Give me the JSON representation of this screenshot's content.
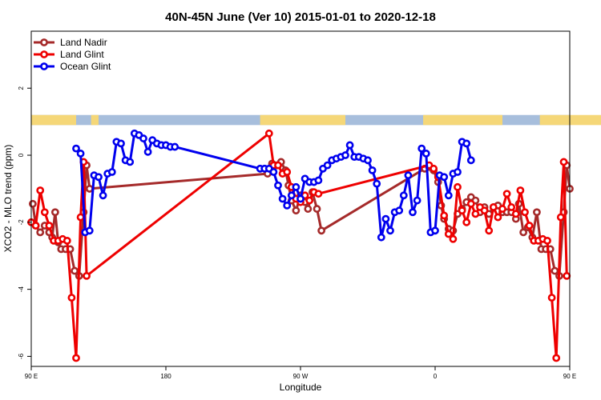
{
  "chart_data": {
    "type": "line",
    "title": "40N-45N June (Ver 10)   2015-01-01 to 2020-12-18",
    "xlabel": "Longitude",
    "ylabel": "XCO2 - MLO trend (ppm)",
    "xlim": [
      90,
      450
    ],
    "ylim": [
      -6.3,
      3.7
    ],
    "x_ticks": [
      {
        "value": 90,
        "label": "90 E"
      },
      {
        "value": 180,
        "label": "180"
      },
      {
        "value": 270,
        "label": "90 W"
      },
      {
        "value": 360,
        "label": "0"
      },
      {
        "value": 450,
        "label": "90 E"
      },
      {
        "value": 540,
        "label": "180"
      }
    ],
    "y_ticks": [
      {
        "value": -6,
        "label": "-6"
      },
      {
        "value": -4,
        "label": "-4"
      },
      {
        "value": -2,
        "label": "-2"
      },
      {
        "value": 0,
        "label": "0"
      },
      {
        "value": 2,
        "label": "2"
      }
    ],
    "legend_position": "top-left",
    "land_ocean_strip": {
      "y_range": [
        0.9,
        1.2
      ],
      "land_color": "#F5D778",
      "ocean_color": "#A7BEDC",
      "land_intervals": [
        [
          90,
          120
        ],
        [
          130,
          135
        ],
        [
          243,
          300
        ],
        [
          352,
          405
        ],
        [
          430,
          480
        ],
        [
          490,
          495
        ]
      ]
    },
    "series": [
      {
        "name": "Land Nadir",
        "color": "#A52A2A",
        "points": [
          [
            91,
            -1.45
          ],
          [
            93,
            -2.1
          ],
          [
            96,
            -2.3
          ],
          [
            99,
            -2.1
          ],
          [
            102,
            -2.3
          ],
          [
            104,
            -2.45
          ],
          [
            106,
            -1.7
          ],
          [
            108,
            -2.6
          ],
          [
            110,
            -2.8
          ],
          [
            113,
            -2.8
          ],
          [
            116,
            -2.8
          ],
          [
            119,
            -3.45
          ],
          [
            122,
            -3.6
          ],
          [
            125,
            -1.7
          ],
          [
            127,
            -0.3
          ],
          [
            129,
            -1.0
          ],
          [
            248,
            -0.55
          ],
          [
            251,
            -0.25
          ],
          [
            254,
            -0.3
          ],
          [
            257,
            -0.2
          ],
          [
            260,
            -0.45
          ],
          [
            262,
            -0.9
          ],
          [
            264,
            -1.35
          ],
          [
            267,
            -1.65
          ],
          [
            270,
            -1.2
          ],
          [
            273,
            -1.4
          ],
          [
            275,
            -1.6
          ],
          [
            278,
            -1.1
          ],
          [
            281,
            -1.6
          ],
          [
            284,
            -2.25
          ],
          [
            353,
            -0.4
          ],
          [
            356,
            -0.35
          ],
          [
            359,
            -0.45
          ],
          [
            362,
            -0.8
          ],
          [
            364,
            -1.5
          ],
          [
            366,
            -1.9
          ],
          [
            369,
            -2.2
          ],
          [
            372,
            -2.25
          ],
          [
            375,
            -1.75
          ],
          [
            378,
            -1.6
          ],
          [
            381,
            -1.4
          ],
          [
            384,
            -1.25
          ],
          [
            387,
            -1.35
          ],
          [
            390,
            -1.7
          ],
          [
            393,
            -1.55
          ],
          [
            396,
            -1.75
          ],
          [
            399,
            -1.55
          ],
          [
            402,
            -1.5
          ],
          [
            405,
            -1.7
          ],
          [
            408,
            -1.7
          ],
          [
            411,
            -1.7
          ],
          [
            414,
            -1.9
          ],
          [
            416,
            -1.45
          ],
          [
            419,
            -2.3
          ],
          [
            422,
            -2.15
          ],
          [
            425,
            -2.45
          ],
          [
            428,
            -1.7
          ],
          [
            431,
            -2.8
          ],
          [
            434,
            -2.8
          ],
          [
            437,
            -2.8
          ],
          [
            440,
            -3.45
          ],
          [
            443,
            -3.6
          ],
          [
            446,
            -1.7
          ],
          [
            448,
            -0.3
          ],
          [
            450,
            -1.0
          ]
        ]
      },
      {
        "name": "Land Glint",
        "color": "#EE0000",
        "points": [
          [
            90,
            -2.0
          ],
          [
            93,
            -2.1
          ],
          [
            96,
            -1.05
          ],
          [
            99,
            -1.7
          ],
          [
            102,
            -2.1
          ],
          [
            105,
            -2.55
          ],
          [
            108,
            -2.55
          ],
          [
            111,
            -2.5
          ],
          [
            114,
            -2.55
          ],
          [
            117,
            -4.25
          ],
          [
            120,
            -6.05
          ],
          [
            123,
            -1.85
          ],
          [
            125,
            -0.2
          ],
          [
            127,
            -3.6
          ],
          [
            249,
            0.65
          ],
          [
            252,
            -0.3
          ],
          [
            255,
            -0.3
          ],
          [
            258,
            -0.55
          ],
          [
            261,
            -0.5
          ],
          [
            264,
            -0.95
          ],
          [
            267,
            -1.3
          ],
          [
            270,
            -1.4
          ],
          [
            273,
            -1.2
          ],
          [
            276,
            -1.35
          ],
          [
            279,
            -1.1
          ],
          [
            282,
            -1.15
          ],
          [
            356,
            -0.3
          ],
          [
            359,
            -0.4
          ],
          [
            362,
            -0.65
          ],
          [
            366,
            -1.8
          ],
          [
            369,
            -2.35
          ],
          [
            372,
            -2.5
          ],
          [
            375,
            -0.95
          ],
          [
            378,
            -1.65
          ],
          [
            381,
            -2.0
          ],
          [
            384,
            -1.45
          ],
          [
            387,
            -1.75
          ],
          [
            390,
            -1.55
          ],
          [
            393,
            -1.65
          ],
          [
            396,
            -2.25
          ],
          [
            399,
            -1.55
          ],
          [
            402,
            -1.85
          ],
          [
            405,
            -1.6
          ],
          [
            408,
            -1.15
          ],
          [
            411,
            -1.55
          ],
          [
            414,
            -1.75
          ],
          [
            417,
            -1.05
          ],
          [
            420,
            -1.7
          ],
          [
            423,
            -2.1
          ],
          [
            426,
            -2.55
          ],
          [
            429,
            -2.55
          ],
          [
            432,
            -2.5
          ],
          [
            435,
            -2.55
          ],
          [
            438,
            -4.25
          ],
          [
            441,
            -6.05
          ],
          [
            444,
            -1.85
          ],
          [
            446,
            -0.2
          ],
          [
            448,
            -3.6
          ]
        ]
      },
      {
        "name": "Ocean Glint",
        "color": "#0000EE",
        "points": [
          [
            120,
            0.2
          ],
          [
            123,
            0.05
          ],
          [
            126,
            -2.3
          ],
          [
            129,
            -2.25
          ],
          [
            132,
            -0.6
          ],
          [
            135,
            -0.65
          ],
          [
            138,
            -1.2
          ],
          [
            141,
            -0.55
          ],
          [
            144,
            -0.5
          ],
          [
            147,
            0.4
          ],
          [
            150,
            0.35
          ],
          [
            153,
            -0.15
          ],
          [
            156,
            -0.2
          ],
          [
            159,
            0.65
          ],
          [
            162,
            0.6
          ],
          [
            165,
            0.5
          ],
          [
            168,
            0.1
          ],
          [
            171,
            0.45
          ],
          [
            174,
            0.35
          ],
          [
            177,
            0.3
          ],
          [
            180,
            0.3
          ],
          [
            183,
            0.25
          ],
          [
            186,
            0.25
          ],
          [
            243,
            -0.4
          ],
          [
            246,
            -0.4
          ],
          [
            249,
            -0.4
          ],
          [
            252,
            -0.5
          ],
          [
            255,
            -0.9
          ],
          [
            258,
            -1.3
          ],
          [
            261,
            -1.5
          ],
          [
            264,
            -1.2
          ],
          [
            267,
            -0.95
          ],
          [
            270,
            -1.3
          ],
          [
            273,
            -0.7
          ],
          [
            276,
            -0.8
          ],
          [
            279,
            -0.8
          ],
          [
            282,
            -0.75
          ],
          [
            285,
            -0.4
          ],
          [
            288,
            -0.3
          ],
          [
            291,
            -0.15
          ],
          [
            294,
            -0.1
          ],
          [
            297,
            -0.05
          ],
          [
            300,
            0.0
          ],
          [
            303,
            0.3
          ],
          [
            306,
            -0.05
          ],
          [
            309,
            -0.05
          ],
          [
            312,
            -0.1
          ],
          [
            315,
            -0.15
          ],
          [
            318,
            -0.45
          ],
          [
            321,
            -0.85
          ],
          [
            324,
            -2.45
          ],
          [
            327,
            -1.9
          ],
          [
            330,
            -2.25
          ],
          [
            333,
            -1.7
          ],
          [
            336,
            -1.65
          ],
          [
            339,
            -1.2
          ],
          [
            342,
            -0.6
          ],
          [
            345,
            -1.7
          ],
          [
            348,
            -1.35
          ],
          [
            351,
            0.2
          ],
          [
            354,
            0.05
          ],
          [
            357,
            -2.3
          ],
          [
            360,
            -2.25
          ],
          [
            363,
            -0.6
          ],
          [
            366,
            -0.65
          ],
          [
            369,
            -1.2
          ],
          [
            372,
            -0.55
          ],
          [
            375,
            -0.5
          ],
          [
            378,
            0.4
          ],
          [
            381,
            0.35
          ],
          [
            384,
            -0.15
          ]
        ]
      }
    ]
  }
}
